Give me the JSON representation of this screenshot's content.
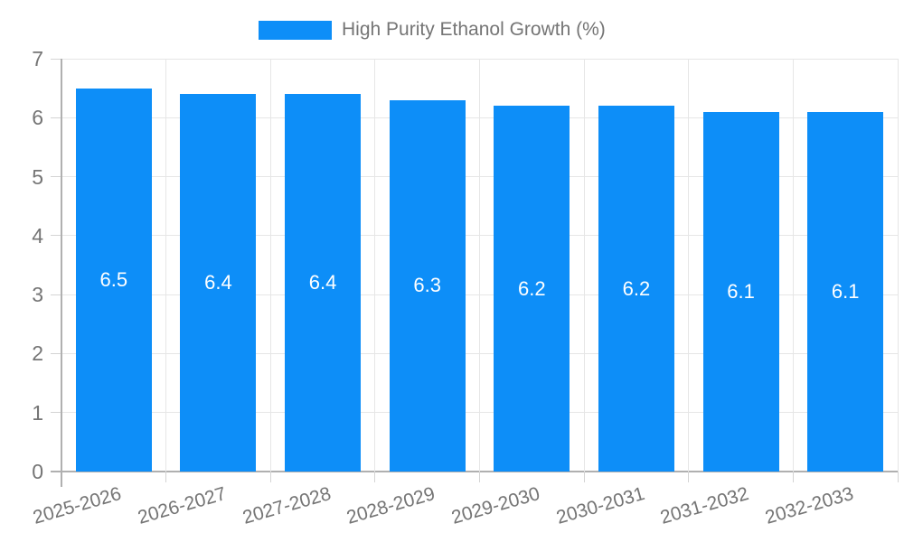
{
  "chart_data": {
    "type": "bar",
    "title": "",
    "legend": "High Purity Ethanol Growth (%)",
    "legend_position": "top-center",
    "categories": [
      "2025-2026",
      "2026-2027",
      "2027-2028",
      "2028-2029",
      "2029-2030",
      "2030-2031",
      "2031-2032",
      "2032-2033"
    ],
    "values": [
      6.5,
      6.4,
      6.4,
      6.3,
      6.2,
      6.2,
      6.1,
      6.1
    ],
    "value_labels": [
      "6.5",
      "6.4",
      "6.4",
      "6.3",
      "6.2",
      "6.2",
      "6.1",
      "6.1"
    ],
    "xlabel": "",
    "ylabel": "",
    "ylim": [
      0,
      7
    ],
    "yticks": [
      0,
      1,
      2,
      3,
      4,
      5,
      6,
      7
    ],
    "grid": true,
    "x_label_rotation_deg": -16
  },
  "colors": {
    "bar": "#0d8ef8",
    "grid": "#e6e6e6",
    "axis": "#b0b0b0",
    "tick": "#d4d4d4",
    "text": "#757575",
    "value_text": "#ffffff",
    "background": "#ffffff"
  }
}
